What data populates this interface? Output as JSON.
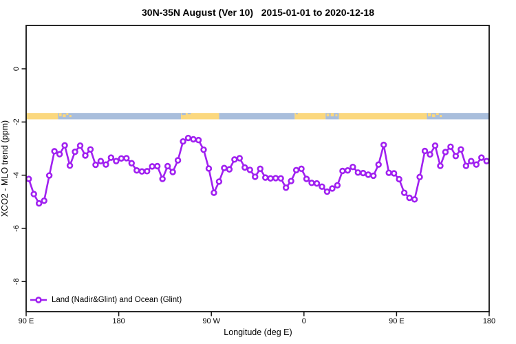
{
  "colors": {
    "series": "#A020F0",
    "marker_fill": "#ffffff",
    "land": "#FBD87E",
    "ocean": "#A9BEDC",
    "axis": "#111111",
    "text": "#000000"
  },
  "chart_data": {
    "type": "line",
    "title": "30N-35N August (Ver 10)   2015-01-01 to 2020-12-18",
    "xlabel": "Longitude (deg E)",
    "ylabel": "XCO2 - MLO trend (ppm)",
    "xlim": [
      90,
      540
    ],
    "ylim": [
      -9.1,
      1.6
    ],
    "grid": false,
    "legend_position": "bottom-left-inside",
    "x_ticks": [
      {
        "lon": 90,
        "label": "90 E"
      },
      {
        "lon": 180,
        "label": "180"
      },
      {
        "lon": 270,
        "label": "90 W"
      },
      {
        "lon": 360,
        "label": "0"
      },
      {
        "lon": 450,
        "label": "90 E"
      },
      {
        "lon": 540,
        "label": "180"
      }
    ],
    "y_ticks": [
      {
        "value": 0,
        "label": "0"
      },
      {
        "value": -2,
        "label": "-2"
      },
      {
        "value": -4,
        "label": "-4"
      },
      {
        "value": -6,
        "label": "-6"
      },
      {
        "value": -8,
        "label": "-8"
      }
    ],
    "x": [
      92.5,
      97.5,
      102.5,
      107.5,
      112.5,
      117.5,
      122.5,
      127.5,
      132.5,
      137.5,
      142.5,
      147.5,
      152.5,
      157.5,
      162.5,
      167.5,
      172.5,
      177.5,
      182.5,
      187.5,
      192.5,
      197.5,
      202.5,
      207.5,
      212.5,
      217.5,
      222.5,
      227.5,
      232.5,
      237.5,
      242.5,
      247.5,
      252.5,
      257.5,
      262.5,
      267.5,
      272.5,
      277.5,
      282.5,
      287.5,
      292.5,
      297.5,
      302.5,
      307.5,
      312.5,
      317.5,
      322.5,
      327.5,
      332.5,
      337.5,
      342.5,
      347.5,
      352.5,
      357.5,
      362.5,
      367.5,
      372.5,
      377.5,
      382.5,
      387.5,
      392.5,
      397.5,
      402.5,
      407.5,
      412.5,
      417.5,
      422.5,
      427.5,
      432.5,
      437.5,
      442.5,
      447.5,
      452.5,
      457.5,
      462.5,
      467.5,
      472.5,
      477.5,
      482.5,
      487.5,
      492.5,
      497.5,
      502.5,
      507.5,
      512.5,
      517.5,
      522.5,
      527.5,
      532.5,
      537.5
    ],
    "series": [
      {
        "name": "Land (Nadir&Glint) and Ocean (Glint)",
        "values": [
          -4.14,
          -4.71,
          -5.06,
          -4.96,
          -4.01,
          -3.1,
          -3.21,
          -2.88,
          -3.64,
          -3.12,
          -2.89,
          -3.26,
          -3.03,
          -3.61,
          -3.47,
          -3.6,
          -3.34,
          -3.47,
          -3.37,
          -3.36,
          -3.55,
          -3.82,
          -3.86,
          -3.85,
          -3.67,
          -3.66,
          -4.14,
          -3.66,
          -3.88,
          -3.44,
          -2.73,
          -2.6,
          -2.65,
          -2.68,
          -3.04,
          -3.75,
          -4.66,
          -4.24,
          -3.73,
          -3.78,
          -3.41,
          -3.36,
          -3.71,
          -3.8,
          -4.06,
          -3.76,
          -4.09,
          -4.12,
          -4.11,
          -4.12,
          -4.47,
          -4.22,
          -3.81,
          -3.76,
          -4.14,
          -4.29,
          -4.31,
          -4.43,
          -4.62,
          -4.5,
          -4.38,
          -3.84,
          -3.82,
          -3.69,
          -3.9,
          -3.92,
          -3.98,
          -4.02,
          -3.6,
          -2.86,
          -3.91,
          -3.93,
          -4.15,
          -4.66,
          -4.85,
          -4.91,
          -4.07,
          -3.09,
          -3.22,
          -2.89,
          -3.65,
          -3.13,
          -2.93,
          -3.28,
          -3.03,
          -3.65,
          -3.47,
          -3.6,
          -3.34,
          -3.47
        ]
      }
    ],
    "band": {
      "description": "land/ocean surface strip",
      "value_top": -1.66,
      "value_bottom": -1.9,
      "segments": [
        {
          "from": 90,
          "to": 121,
          "surface": "land"
        },
        {
          "from": 121,
          "to": 240.5,
          "surface": "ocean"
        },
        {
          "from": 240.5,
          "to": 277.5,
          "surface": "land"
        },
        {
          "from": 277.5,
          "to": 351,
          "surface": "ocean"
        },
        {
          "from": 351,
          "to": 381,
          "surface": "land"
        },
        {
          "from": 381,
          "to": 394,
          "surface": "ocean"
        },
        {
          "from": 394,
          "to": 479.5,
          "surface": "land"
        },
        {
          "from": 479.5,
          "to": 540,
          "surface": "ocean"
        }
      ],
      "speckles": [
        {
          "lon": 122,
          "w": 2.5,
          "surface": "land",
          "dy": 0,
          "h": 5
        },
        {
          "lon": 125.5,
          "w": 3,
          "surface": "land",
          "dy": 2,
          "h": 4
        },
        {
          "lon": 129,
          "w": 2,
          "surface": "land",
          "dy": 0,
          "h": 3
        },
        {
          "lon": 132,
          "w": 2,
          "surface": "land",
          "dy": 3,
          "h": 3
        },
        {
          "lon": 241,
          "w": 4,
          "surface": "ocean",
          "dy": 0,
          "h": 3
        },
        {
          "lon": 247,
          "w": 3,
          "surface": "ocean",
          "dy": 0,
          "h": 2
        },
        {
          "lon": 352,
          "w": 2,
          "surface": "ocean",
          "dy": 0,
          "h": 2
        },
        {
          "lon": 382,
          "w": 2.5,
          "surface": "land",
          "dy": 1,
          "h": 4
        },
        {
          "lon": 386,
          "w": 3,
          "surface": "land",
          "dy": 0,
          "h": 5
        },
        {
          "lon": 390.5,
          "w": 2,
          "surface": "land",
          "dy": 2,
          "h": 3
        },
        {
          "lon": 480.5,
          "w": 3,
          "surface": "land",
          "dy": 0,
          "h": 5
        },
        {
          "lon": 484.5,
          "w": 3,
          "surface": "land",
          "dy": 2,
          "h": 4
        },
        {
          "lon": 488.5,
          "w": 2.5,
          "surface": "land",
          "dy": 0,
          "h": 3
        },
        {
          "lon": 492,
          "w": 2,
          "surface": "land",
          "dy": 3,
          "h": 3
        }
      ]
    }
  }
}
